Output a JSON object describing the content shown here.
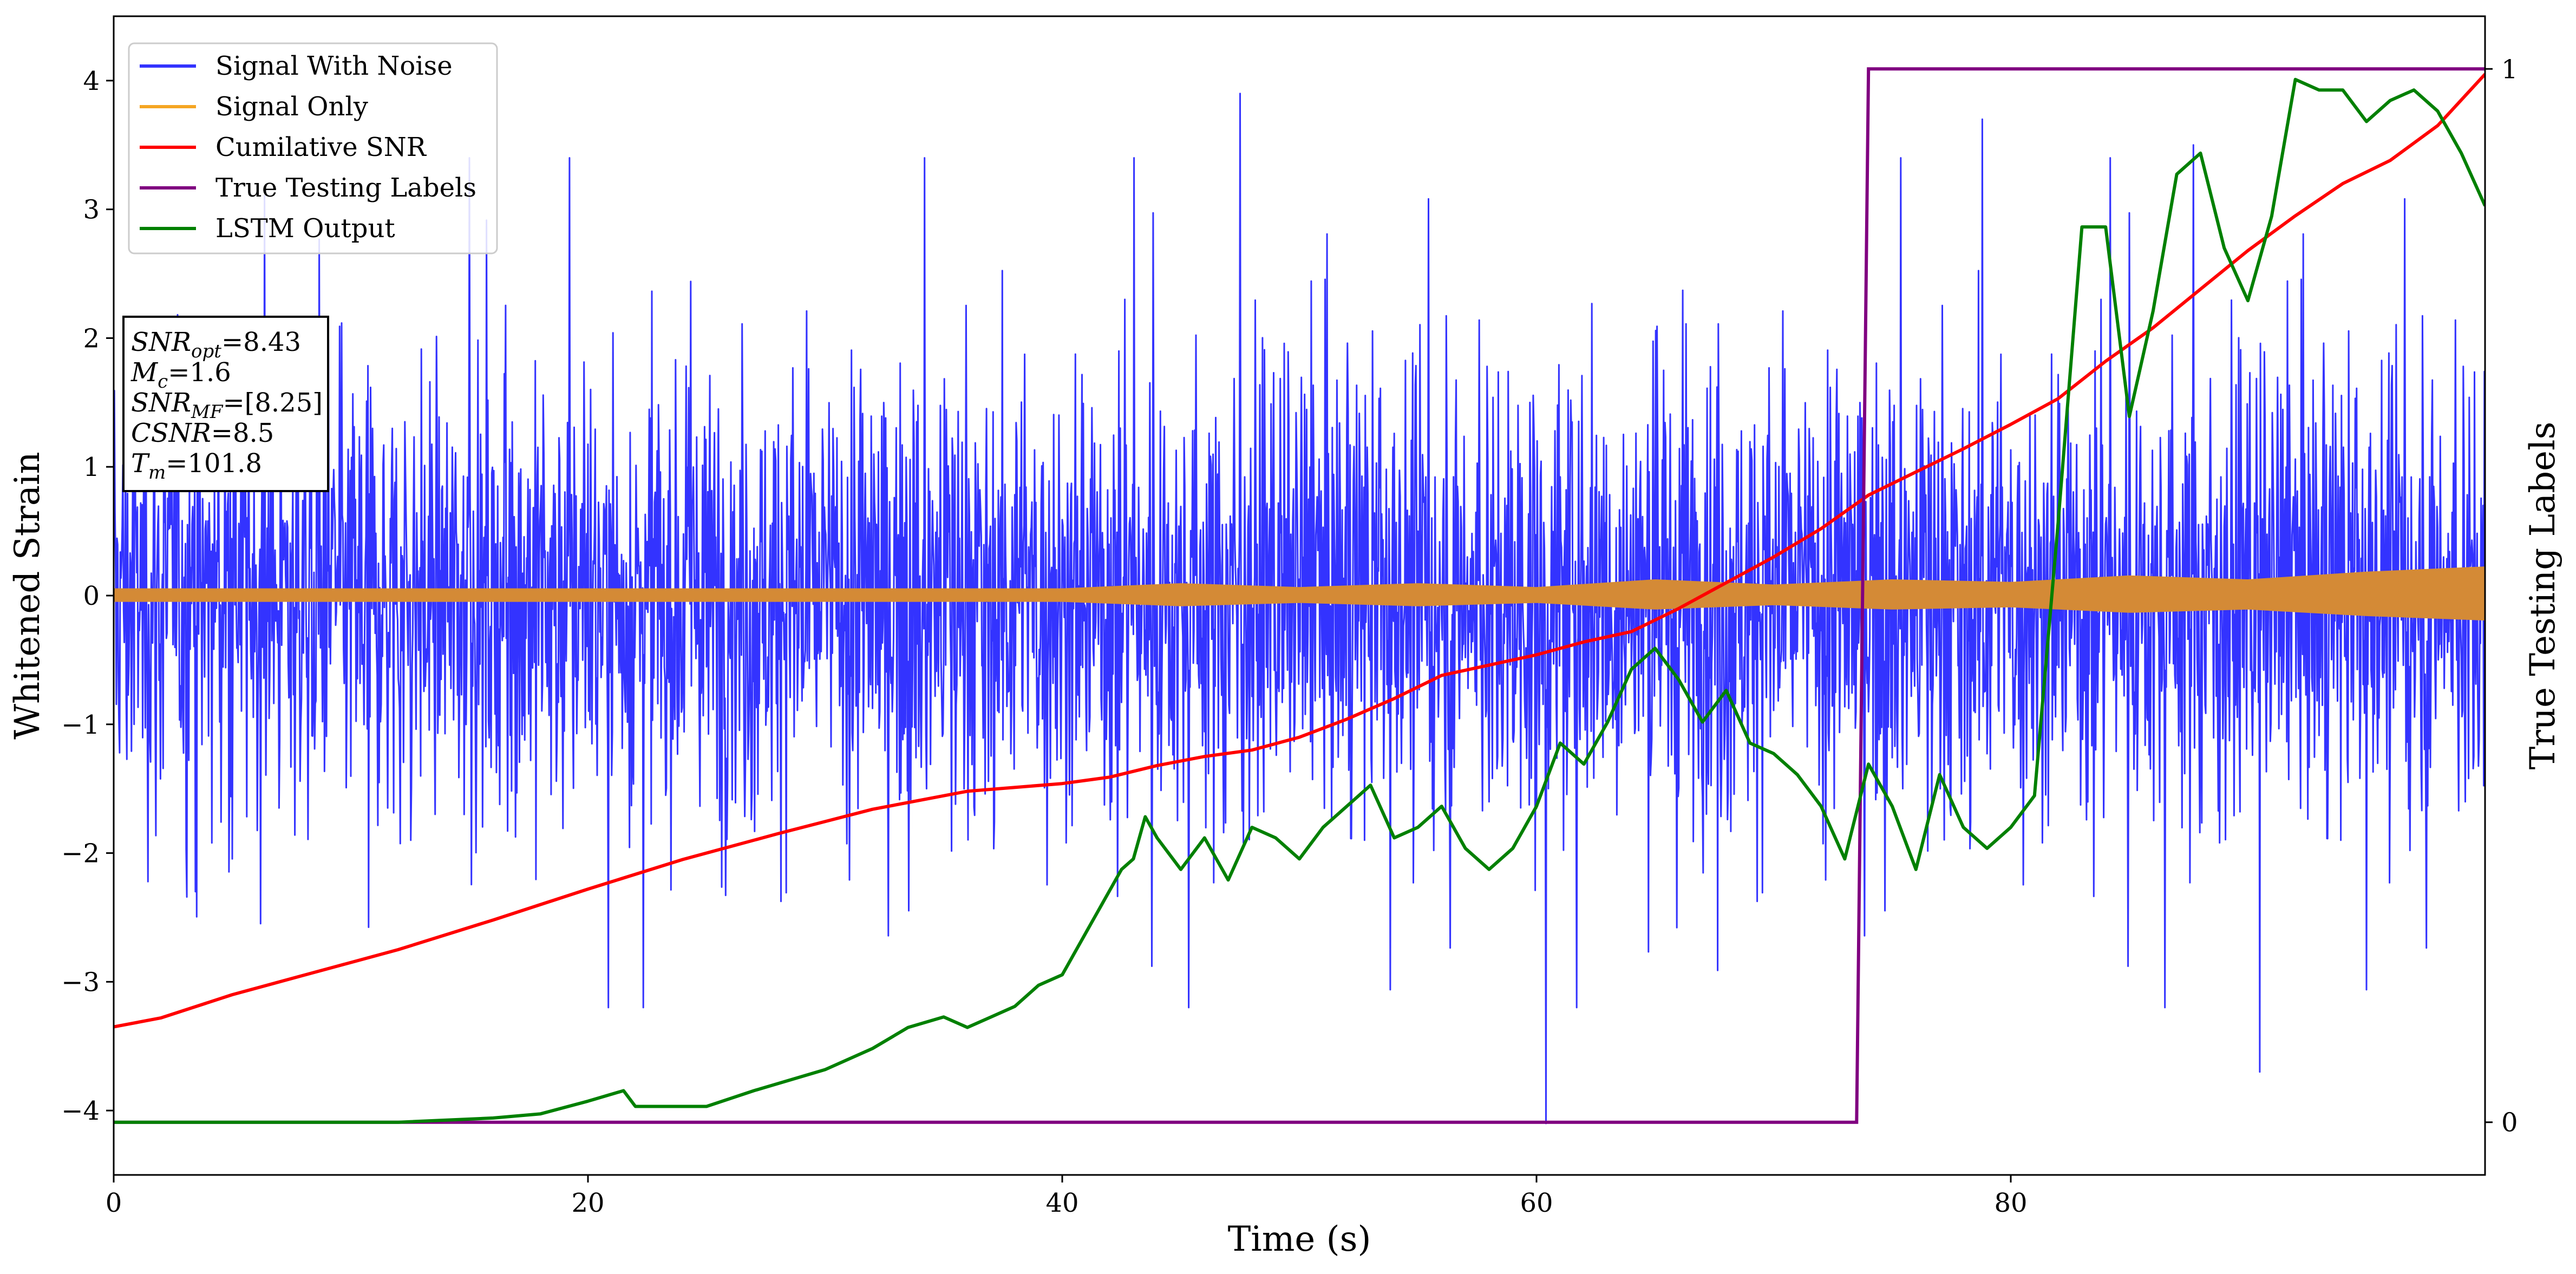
{
  "chart_data": {
    "type": "line",
    "xlabel": "Time (s)",
    "ylabel": "Whitened Strain",
    "y2label": "True Testing Labels",
    "xlim": [
      0,
      100
    ],
    "ylim": [
      -4.5,
      4.5
    ],
    "y2lim": [
      -0.05,
      1.05
    ],
    "x_ticks": [
      "0",
      "20",
      "40",
      "60",
      "80"
    ],
    "y_ticks": [
      "−4",
      "−3",
      "−2",
      "−1",
      "0",
      "1",
      "2",
      "3",
      "4"
    ],
    "y2_ticks": [
      "0",
      "1"
    ],
    "grid": false,
    "legend_position": "top-left",
    "legend": [
      {
        "label": "Signal With Noise",
        "color": "#3333ff"
      },
      {
        "label": "Signal Only",
        "color": "#f5a623"
      },
      {
        "label": "Cumilative SNR",
        "color": "#ff0000"
      },
      {
        "label": "True Testing Labels",
        "color": "#800080"
      },
      {
        "label": "LSTM Output",
        "color": "#008000"
      }
    ],
    "info_box": [
      {
        "symbol": "SNR",
        "sub": "opt",
        "value": "=8.43"
      },
      {
        "symbol": "M",
        "sub": "c",
        "value": "=1.6"
      },
      {
        "symbol": "SNR",
        "sub": "MF",
        "value": "=[8.25]"
      },
      {
        "symbol": "CSNR",
        "sub": "",
        "value": "=8.5"
      },
      {
        "symbol": "T",
        "sub": "m",
        "value": "=101.8"
      }
    ],
    "series": [
      {
        "name": "Signal With Noise",
        "color": "#3333ff",
        "axis": "left",
        "x_range": [
          0,
          100
        ],
        "band_envelope_approx": [
          -2.9,
          3.7
        ],
        "notable_values": [
          {
            "x": 15.0,
            "y": 3.4
          },
          {
            "x": 47.5,
            "y": 3.9
          },
          {
            "x": 60.4,
            "y": -4.1
          },
          {
            "x": 78.8,
            "y": 3.7
          },
          {
            "x": 87.7,
            "y": 3.5
          },
          {
            "x": 90.5,
            "y": -3.7
          }
        ]
      },
      {
        "name": "Signal Only",
        "color": "#f5a623",
        "axis": "left",
        "envelope_x": [
          0,
          10,
          20,
          30,
          40,
          45,
          50,
          55,
          60,
          65,
          70,
          75,
          80,
          85,
          90,
          95,
          100
        ],
        "envelope_amplitude": [
          0.05,
          0.05,
          0.05,
          0.05,
          0.05,
          0.09,
          0.06,
          0.09,
          0.06,
          0.12,
          0.08,
          0.12,
          0.1,
          0.15,
          0.12,
          0.18,
          0.22
        ]
      },
      {
        "name": "Cumilative SNR",
        "color": "#ff0000",
        "axis": "left",
        "x": [
          0,
          2,
          5,
          8,
          12,
          16,
          20,
          24,
          28,
          32,
          36,
          40,
          42,
          44,
          46,
          48,
          50,
          52,
          54,
          56,
          58,
          60,
          62,
          64,
          66,
          68,
          70,
          72,
          74,
          76,
          78,
          80,
          82,
          84,
          86,
          88,
          90,
          92,
          94,
          96,
          98,
          100
        ],
        "y": [
          -3.35,
          -3.28,
          -3.1,
          -2.95,
          -2.75,
          -2.52,
          -2.28,
          -2.05,
          -1.85,
          -1.66,
          -1.52,
          -1.46,
          -1.41,
          -1.32,
          -1.25,
          -1.2,
          -1.1,
          -0.96,
          -0.8,
          -0.62,
          -0.54,
          -0.46,
          -0.36,
          -0.28,
          -0.1,
          0.1,
          0.3,
          0.52,
          0.78,
          0.96,
          1.14,
          1.33,
          1.53,
          1.82,
          2.08,
          2.38,
          2.68,
          2.95,
          3.2,
          3.38,
          3.65,
          4.05
        ]
      },
      {
        "name": "True Testing Labels",
        "color": "#800080",
        "axis": "right",
        "x": [
          0,
          73.5,
          74.0,
          100
        ],
        "y": [
          0,
          0,
          1,
          1
        ]
      },
      {
        "name": "LSTM Output",
        "color": "#008000",
        "axis": "right",
        "x": [
          0,
          12,
          16,
          18,
          20,
          21.5,
          22,
          25,
          27,
          30,
          32,
          33.5,
          35,
          36,
          37,
          38,
          39,
          40,
          41,
          42,
          42.5,
          43,
          43.5,
          44,
          45,
          46,
          47,
          48,
          49,
          50,
          51,
          52,
          53,
          54,
          55,
          56,
          57,
          58,
          59,
          60,
          61,
          62,
          63,
          64,
          65,
          66,
          67,
          68,
          69,
          70,
          71,
          72,
          73,
          74,
          75,
          76,
          77,
          78,
          79,
          80,
          81,
          82,
          83,
          84,
          85,
          86,
          87,
          88,
          89,
          90,
          91,
          92,
          93,
          94,
          95,
          96,
          97,
          98,
          99,
          100
        ],
        "y": [
          0,
          0,
          0.004,
          0.008,
          0.02,
          0.03,
          0.015,
          0.015,
          0.03,
          0.05,
          0.07,
          0.09,
          0.1,
          0.09,
          0.1,
          0.11,
          0.13,
          0.14,
          0.18,
          0.22,
          0.24,
          0.25,
          0.29,
          0.27,
          0.24,
          0.27,
          0.23,
          0.28,
          0.27,
          0.25,
          0.28,
          0.3,
          0.32,
          0.27,
          0.28,
          0.3,
          0.26,
          0.24,
          0.26,
          0.3,
          0.36,
          0.34,
          0.38,
          0.43,
          0.45,
          0.42,
          0.38,
          0.41,
          0.36,
          0.35,
          0.33,
          0.3,
          0.25,
          0.34,
          0.3,
          0.24,
          0.33,
          0.28,
          0.26,
          0.28,
          0.31,
          0.57,
          0.85,
          0.85,
          0.67,
          0.77,
          0.9,
          0.92,
          0.83,
          0.78,
          0.86,
          0.99,
          0.98,
          0.98,
          0.95,
          0.97,
          0.98,
          0.96,
          0.92,
          0.87
        ]
      }
    ]
  }
}
